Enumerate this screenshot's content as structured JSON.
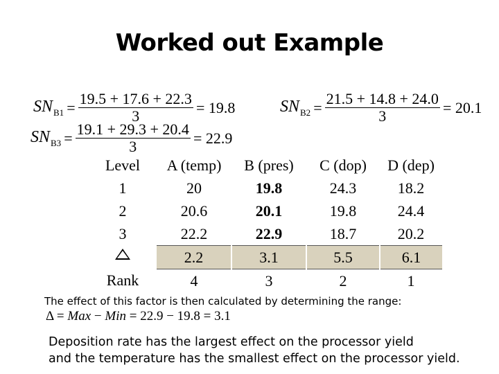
{
  "title": "Worked out Example",
  "equations": {
    "sn_b1": {
      "symbol": "SN",
      "subscript": "B1",
      "numerator": "19.5 + 17.6 + 22.3",
      "denominator": "3",
      "result": "= 19.8"
    },
    "sn_b2": {
      "symbol": "SN",
      "subscript": "B2",
      "numerator": "21.5 + 14.8 + 24.0",
      "denominator": "3",
      "result": "= 20.1"
    },
    "sn_b3": {
      "symbol": "SN",
      "subscript": "B3",
      "numerator": "19.1 + 29.3 + 20.4",
      "denominator": "3",
      "result": "= 22.9"
    }
  },
  "table": {
    "headers": [
      "Level",
      "A (temp)",
      "B (pres)",
      "C (dop)",
      "D (dep)"
    ],
    "rows": [
      [
        "1",
        "20",
        "19.8",
        "24.3",
        "18.2"
      ],
      [
        "2",
        "20.6",
        "20.1",
        "19.8",
        "24.4"
      ],
      [
        "3",
        "22.2",
        "22.9",
        "18.7",
        "20.2"
      ]
    ],
    "delta_row": [
      "2.2",
      "3.1",
      "5.5",
      "6.1"
    ],
    "rank_label": "Rank",
    "rank_row": [
      "4",
      "3",
      "2",
      "1"
    ],
    "shade_color": "#d9d2bd"
  },
  "range_note": "The effect of this factor is then calculated by determining the range:",
  "range_formula": {
    "symbol": "Δ",
    "eq1": "=",
    "max": "Max",
    "minus": "−",
    "min": "Min",
    "expression": "= 22.9 − 19.8 = 3.1"
  },
  "conclusion": [
    "Deposition rate has the largest effect on the processor yield",
    "and the temperature has the smallest effect on the processor yield."
  ]
}
